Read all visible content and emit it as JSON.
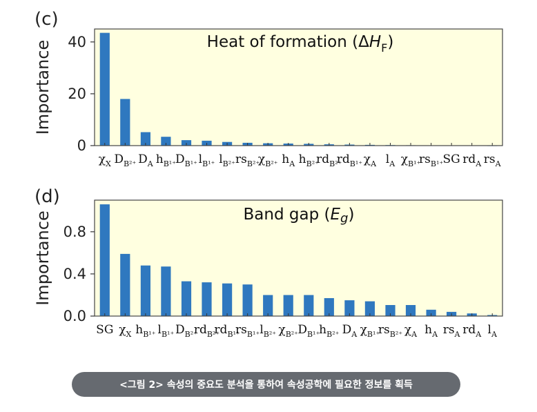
{
  "chart_data": [
    {
      "type": "bar",
      "panel": "(c)",
      "title": "Heat of formation (ΔH_F)",
      "ylabel": "Importance",
      "xlabel": "",
      "ylim": [
        0,
        45
      ],
      "yticks": [
        0,
        20,
        40
      ],
      "grid": false,
      "background": "#ffffe0",
      "bar_color": "#2f78bf",
      "categories": [
        {
          "base": "χ",
          "sub": "X"
        },
        {
          "base": "D",
          "sub": "B²⁺"
        },
        {
          "base": "D",
          "sub": "A"
        },
        {
          "base": "h",
          "sub": "B¹⁺"
        },
        {
          "base": "D",
          "sub": "B¹⁺"
        },
        {
          "base": "l",
          "sub": "B¹⁺"
        },
        {
          "base": "l",
          "sub": "B²⁺"
        },
        {
          "base": "rs",
          "sub": "B²⁺"
        },
        {
          "base": "χ",
          "sub": "B²⁺"
        },
        {
          "base": "h",
          "sub": "A"
        },
        {
          "base": "h",
          "sub": "B²⁺"
        },
        {
          "base": "rd",
          "sub": "B²⁺"
        },
        {
          "base": "rd",
          "sub": "B¹⁺"
        },
        {
          "base": "χ",
          "sub": "A"
        },
        {
          "base": "l",
          "sub": "A"
        },
        {
          "base": "χ",
          "sub": "B¹⁺"
        },
        {
          "base": "rs",
          "sub": "B¹⁺"
        },
        {
          "base": "SG",
          "sub": ""
        },
        {
          "base": "rd",
          "sub": "A"
        },
        {
          "base": "rs",
          "sub": "A"
        }
      ],
      "values": [
        43.5,
        18,
        5.2,
        3.4,
        2.1,
        1.9,
        1.4,
        1.1,
        0.9,
        0.8,
        0.7,
        0.5,
        0.4,
        0.3,
        0.2,
        0.15,
        0.1,
        0.1,
        0.08,
        0.05
      ]
    },
    {
      "type": "bar",
      "panel": "(d)",
      "title": "Band gap (E_g)",
      "ylabel": "Importance",
      "xlabel": "",
      "ylim": [
        0,
        1.1
      ],
      "yticks": [
        0.0,
        0.4,
        0.8
      ],
      "ytick_labels": [
        "0.0",
        "0.4",
        "0.8"
      ],
      "grid": false,
      "background": "#ffffe0",
      "bar_color": "#2f78bf",
      "categories": [
        {
          "base": "SG",
          "sub": ""
        },
        {
          "base": "χ",
          "sub": "X"
        },
        {
          "base": "h",
          "sub": "B¹⁺"
        },
        {
          "base": "l",
          "sub": "B¹⁺"
        },
        {
          "base": "D",
          "sub": "B²⁺"
        },
        {
          "base": "rd",
          "sub": "B²⁺"
        },
        {
          "base": "rd",
          "sub": "B¹⁺"
        },
        {
          "base": "rs",
          "sub": "B¹⁺"
        },
        {
          "base": "l",
          "sub": "B²⁺"
        },
        {
          "base": "χ",
          "sub": "B²⁺"
        },
        {
          "base": "D",
          "sub": "B¹⁺"
        },
        {
          "base": "h",
          "sub": "B²⁺"
        },
        {
          "base": "D",
          "sub": "A"
        },
        {
          "base": "χ",
          "sub": "B¹⁺"
        },
        {
          "base": "rs",
          "sub": "B²⁺"
        },
        {
          "base": "χ",
          "sub": "A"
        },
        {
          "base": "h",
          "sub": "A"
        },
        {
          "base": "rs",
          "sub": "A"
        },
        {
          "base": "rd",
          "sub": "A"
        },
        {
          "base": "l",
          "sub": "A"
        }
      ],
      "values": [
        1.06,
        0.59,
        0.48,
        0.47,
        0.33,
        0.32,
        0.31,
        0.3,
        0.2,
        0.2,
        0.2,
        0.17,
        0.15,
        0.14,
        0.105,
        0.105,
        0.06,
        0.04,
        0.025,
        0.01
      ]
    }
  ],
  "caption": "<그림 2> 속성의 중요도 분석을 통하여 속성공학에 필요한 정보를 획득"
}
